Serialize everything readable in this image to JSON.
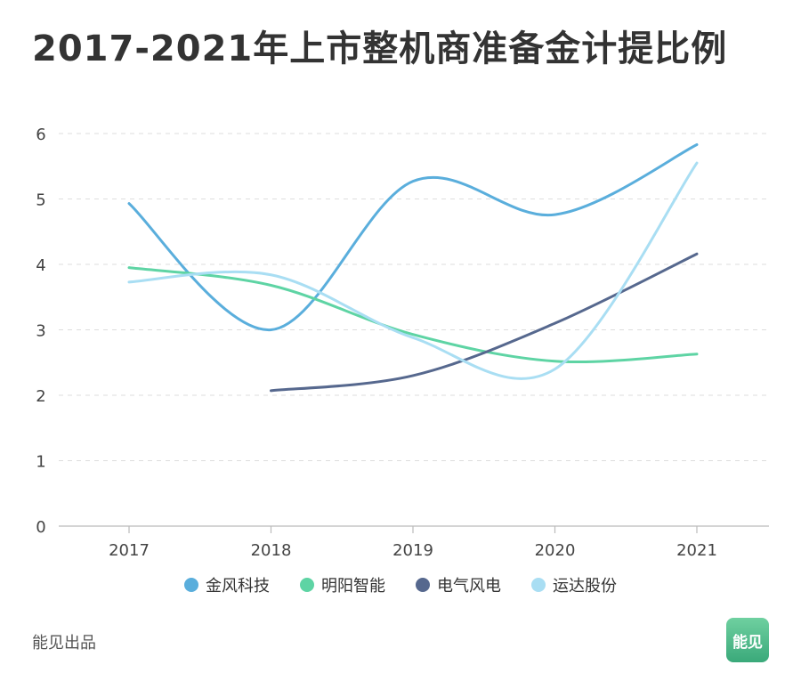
{
  "title": "2017-2021年上市整机商准备金计提比例",
  "footer": "能见出品",
  "badge": "能见",
  "chart_data": {
    "type": "line",
    "title": "2017-2021年上市整机商准备金计提比例",
    "categories": [
      "2017",
      "2018",
      "2019",
      "2020",
      "2021"
    ],
    "ylim": [
      0,
      6
    ],
    "yticks": [
      0,
      1,
      2,
      3,
      4,
      5,
      6
    ],
    "grid": true,
    "legend_position": "bottom",
    "series": [
      {
        "name": "金风科技",
        "color": "#5aaedc",
        "values": [
          4.93,
          3.0,
          5.27,
          4.76,
          5.83
        ]
      },
      {
        "name": "明阳智能",
        "color": "#5ed4a4",
        "values": [
          3.95,
          3.68,
          2.93,
          2.52,
          2.63
        ]
      },
      {
        "name": "电气风电",
        "color": "#56688e",
        "values": [
          null,
          2.07,
          2.3,
          3.1,
          4.16
        ]
      },
      {
        "name": "运达股份",
        "color": "#a9def3",
        "values": [
          3.73,
          3.84,
          2.88,
          2.4,
          5.55
        ]
      }
    ]
  }
}
